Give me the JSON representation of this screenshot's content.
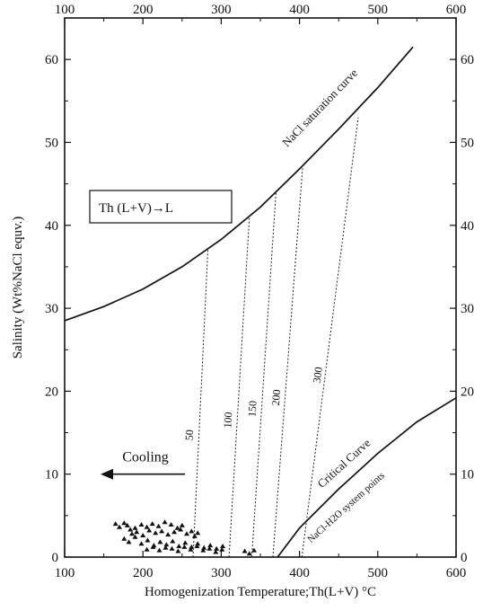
{
  "chart_data": {
    "type": "scatter",
    "xlabel": "Homogenization  Temperature;Th(L+V) °C",
    "ylabel": "Salinity (Wt%NaCl equv.)",
    "xlim": [
      100,
      600
    ],
    "ylim": [
      0,
      65
    ],
    "x_ticks": [
      "100",
      "200",
      "300",
      "400",
      "500",
      "600"
    ],
    "y_ticks_left": [
      "0",
      "10",
      "20",
      "30",
      "40",
      "50",
      "60"
    ],
    "y_ticks_right": [
      "0",
      "10",
      "20",
      "30",
      "40",
      "50",
      "60"
    ],
    "x_ticks_top": [
      "100",
      "200",
      "300",
      "400",
      "500",
      "600"
    ],
    "legend": {
      "label": "Th (L+V)→L",
      "marker": "triangle",
      "placement": "upper-left"
    },
    "curves": [
      {
        "name": "NaCl saturation curve",
        "points": [
          [
            100,
            28.5
          ],
          [
            150,
            30.2
          ],
          [
            200,
            32.3
          ],
          [
            250,
            35.0
          ],
          [
            300,
            38.3
          ],
          [
            350,
            42.2
          ],
          [
            400,
            46.8
          ],
          [
            450,
            51.6
          ],
          [
            500,
            56.6
          ],
          [
            545,
            61.5
          ]
        ]
      },
      {
        "name": "Critical Curve",
        "points": [
          [
            372,
            0
          ],
          [
            400,
            3.5
          ],
          [
            450,
            8.2
          ],
          [
            500,
            12.5
          ],
          [
            550,
            16.3
          ],
          [
            600,
            19.2
          ]
        ]
      }
    ],
    "isochores": [
      {
        "label": "50",
        "points": [
          [
            264,
            0
          ],
          [
            283,
            37.0
          ]
        ]
      },
      {
        "label": "100",
        "points": [
          [
            310,
            0
          ],
          [
            336,
            41.0
          ]
        ]
      },
      {
        "label": "150",
        "points": [
          [
            339,
            0
          ],
          [
            370,
            44.0
          ]
        ]
      },
      {
        "label": "200",
        "points": [
          [
            366,
            0
          ],
          [
            404,
            47.0
          ]
        ]
      },
      {
        "label": "300",
        "points": [
          [
            403,
            0
          ],
          [
            475,
            53.0
          ]
        ]
      }
    ],
    "annotations": [
      {
        "text": "Cooling",
        "arrow": "left"
      },
      {
        "text": "NaCl-H2O system points"
      }
    ],
    "series": [
      {
        "name": "Th (L+V)→L",
        "marker": "triangle",
        "x": [
          165,
          170,
          176,
          180,
          184,
          190,
          198,
          205,
          212,
          220,
          228,
          236,
          244,
          250,
          186,
          192,
          200,
          208,
          216,
          224,
          232,
          240,
          248,
          256,
          262,
          266,
          270,
          176,
          182,
          190,
          198,
          206,
          214,
          222,
          230,
          238,
          246,
          254,
          262,
          270,
          278,
          286,
          294,
          302,
          205,
          213,
          221,
          229,
          237,
          245,
          253,
          261,
          269,
          277,
          285,
          293,
          301,
          330,
          336,
          342
        ],
        "y": [
          4.0,
          3.6,
          4.1,
          3.8,
          3.3,
          3.5,
          3.9,
          3.6,
          4.0,
          3.7,
          4.2,
          3.9,
          3.5,
          3.8,
          2.8,
          3.0,
          2.6,
          3.2,
          2.9,
          3.1,
          2.7,
          3.0,
          3.3,
          2.8,
          3.1,
          2.5,
          2.9,
          2.2,
          1.8,
          2.4,
          1.6,
          2.0,
          1.4,
          1.8,
          1.5,
          1.9,
          1.3,
          1.7,
          1.2,
          1.6,
          1.1,
          1.4,
          1.0,
          1.3,
          0.9,
          1.2,
          0.8,
          1.1,
          1.0,
          0.7,
          1.2,
          0.9,
          1.3,
          0.8,
          1.0,
          0.6,
          0.9,
          0.7,
          0.4,
          0.8
        ]
      }
    ]
  }
}
